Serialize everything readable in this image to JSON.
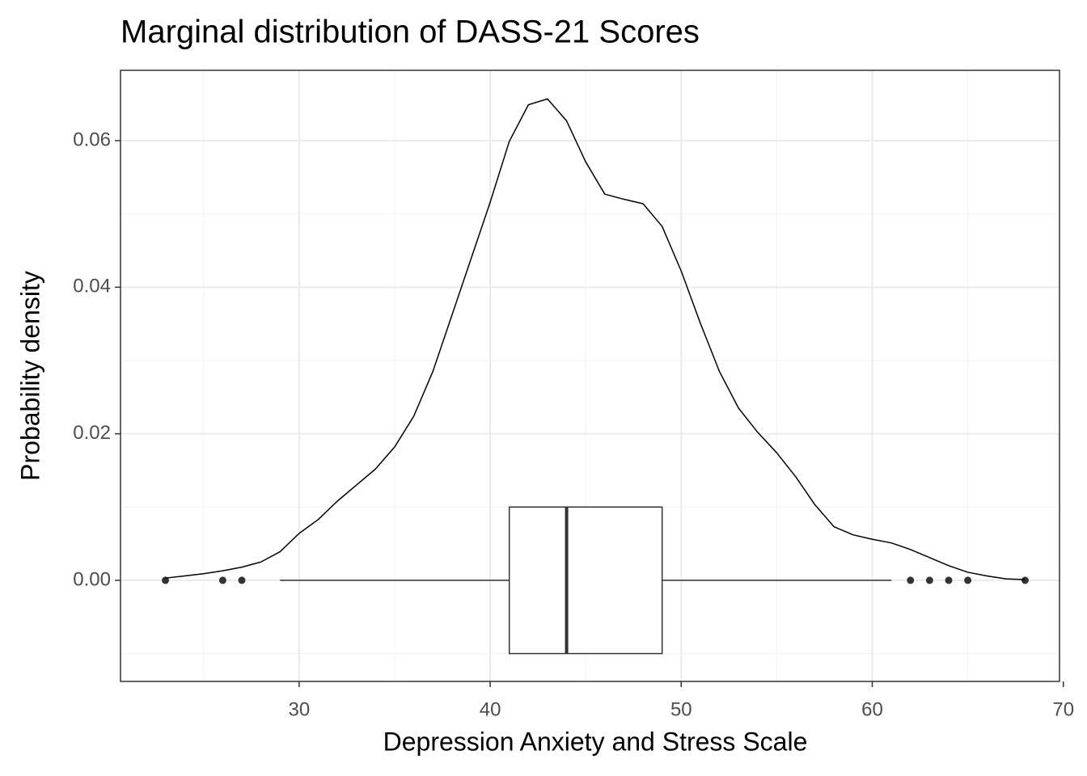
{
  "chart_data": {
    "type": "density",
    "title": "Marginal distribution of DASS-21 Scores",
    "x_label": "Depression Anxiety and Stress Scale",
    "y_label": "Probability density",
    "x": [
      23,
      24,
      25,
      26,
      27,
      28,
      29,
      30,
      31,
      32,
      33,
      34,
      35,
      36,
      37,
      38,
      39,
      40,
      41,
      42,
      43,
      44,
      45,
      46,
      47,
      48,
      49,
      50,
      51,
      52,
      53,
      54,
      55,
      56,
      57,
      58,
      59,
      60,
      61,
      62,
      63,
      64,
      65,
      66,
      67,
      68
    ],
    "values": [
      0.0003,
      0.0006,
      0.0009,
      0.0013,
      0.0018,
      0.0025,
      0.0039,
      0.0064,
      0.0083,
      0.0108,
      0.013,
      0.0152,
      0.0182,
      0.0224,
      0.0285,
      0.0362,
      0.0439,
      0.0516,
      0.0599,
      0.0649,
      0.0657,
      0.0627,
      0.0571,
      0.0527,
      0.052,
      0.0514,
      0.0483,
      0.0422,
      0.0351,
      0.0285,
      0.0235,
      0.0202,
      0.0174,
      0.0141,
      0.0103,
      0.0073,
      0.0062,
      0.0056,
      0.0051,
      0.0042,
      0.0031,
      0.002,
      0.0011,
      0.0006,
      0.0002,
      0.0001
    ],
    "color": "#000000",
    "boxplot": {
      "whisker_low": 29,
      "q1": 41,
      "median": 44,
      "q3": 49,
      "whisker_high": 61,
      "outliers": [
        23,
        26,
        27,
        62,
        63,
        64,
        65,
        68
      ],
      "box_ylim": [
        -0.01,
        0.01
      ],
      "color": "#333333"
    },
    "xlim": [
      20.65,
      69.8
    ],
    "ylim": [
      -0.0138,
      0.0696
    ],
    "xticks": [
      30,
      40,
      50,
      60,
      70
    ],
    "yticks": [
      {
        "value": 0,
        "label": "0.00"
      },
      {
        "value": 0.02,
        "label": "0.02"
      },
      {
        "value": 0.04,
        "label": "0.04"
      },
      {
        "value": 0.06,
        "label": "0.06"
      }
    ],
    "xminor": [
      25,
      35,
      45,
      55,
      65
    ],
    "yminor": [
      -0.01,
      0.01,
      0.03,
      0.05
    ],
    "grid": true
  }
}
